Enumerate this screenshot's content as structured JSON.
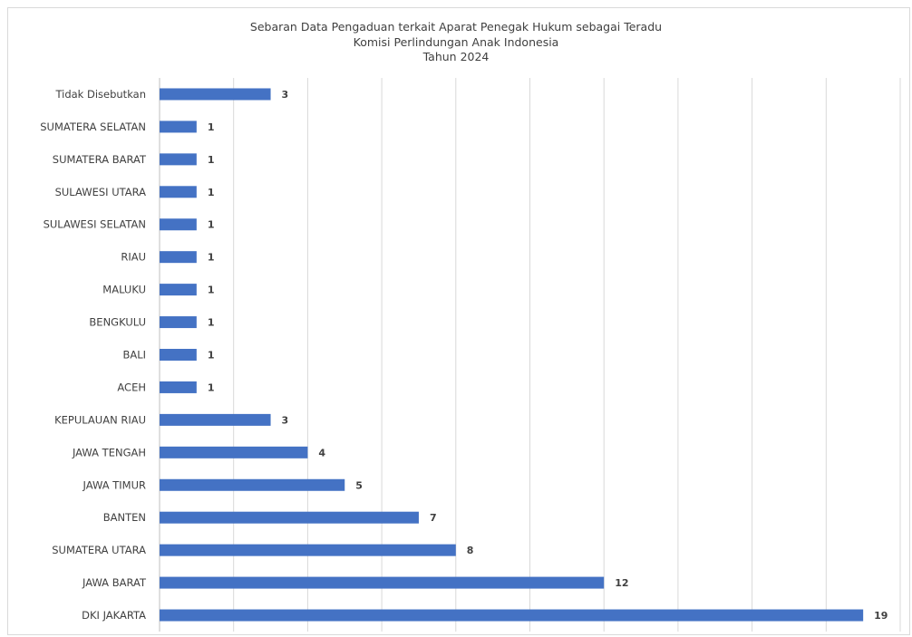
{
  "chart_data": {
    "type": "bar",
    "orientation": "horizontal",
    "title_lines": [
      "Sebaran Data Pengaduan terkait Aparat Penegak Hukum sebagai Teradu",
      "Komisi Perlindungan Anak Indonesia",
      "Tahun 2024"
    ],
    "categories": [
      "Tidak Disebutkan",
      "SUMATERA SELATAN",
      "SUMATERA BARAT",
      "SULAWESI UTARA",
      "SULAWESI SELATAN",
      "RIAU",
      "MALUKU",
      "BENGKULU",
      "BALI",
      "ACEH",
      "KEPULAUAN RIAU",
      "JAWA TENGAH",
      "JAWA TIMUR",
      "BANTEN",
      "SUMATERA UTARA",
      "JAWA BARAT",
      "DKI JAKARTA"
    ],
    "values": [
      3,
      1,
      1,
      1,
      1,
      1,
      1,
      1,
      1,
      1,
      3,
      4,
      5,
      7,
      8,
      12,
      19
    ],
    "xlim": [
      0,
      20
    ],
    "x_gridline_step": 2,
    "x_tick_labels_shown": false,
    "grid": true,
    "legend": "none",
    "data_labels": true,
    "bar_color": "#4472c4",
    "gridline_color": "#d9d9d9",
    "text_color": "#404040"
  }
}
